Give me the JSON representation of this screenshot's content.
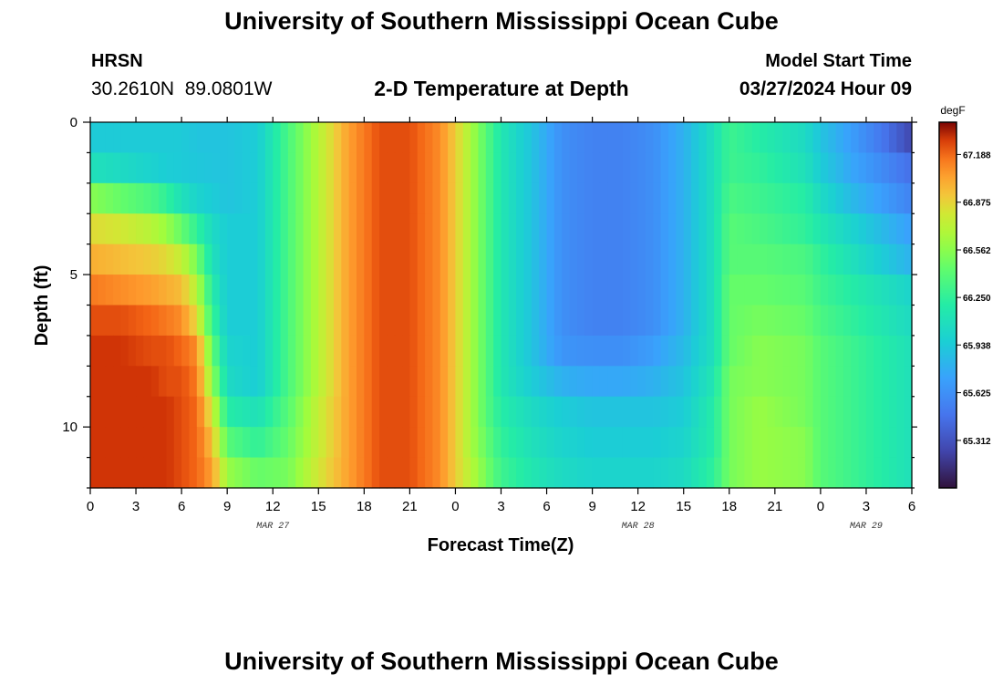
{
  "header": {
    "title": "University of Southern Mississippi Ocean Cube",
    "station": "HRSN",
    "coords": "30.2610N  89.0801W",
    "subtitle": "2-D Temperature at Depth",
    "model_label": "Model Start Time",
    "model_time": "03/27/2024 Hour 09"
  },
  "footer": {
    "title": "University of Southern Mississippi Ocean Cube"
  },
  "chart_data": {
    "type": "heatmap",
    "title": "2-D Temperature at Depth",
    "xlabel": "Forecast Time(Z)",
    "ylabel": "Depth (ft)",
    "x_ticks": [
      "0",
      "3",
      "6",
      "9",
      "12",
      "15",
      "18",
      "21",
      "0",
      "3",
      "6",
      "9",
      "12",
      "15",
      "18",
      "21",
      "0",
      "3",
      "6"
    ],
    "date_labels": [
      {
        "label": "MAR 27",
        "hour_offset": 12
      },
      {
        "label": "MAR 28",
        "hour_offset": 36
      },
      {
        "label": "MAR 29",
        "hour_offset": 51
      }
    ],
    "x_range_hours": [
      0,
      54
    ],
    "y_ticks": [
      0,
      5,
      10
    ],
    "y_range_ft": [
      0,
      12
    ],
    "colorbar": {
      "unit": "degF",
      "min": 65.0,
      "max": 67.4,
      "ticks": [
        "67.188",
        "66.875",
        "66.562",
        "66.250",
        "65.938",
        "65.625",
        "65.312"
      ]
    },
    "depth_levels_ft": [
      0.5,
      1.5,
      2.5,
      3.5,
      4.5,
      5.5,
      6.5,
      7.5,
      8.5,
      9.5,
      10.5,
      11.5
    ],
    "time_keys_hours": [
      0,
      2,
      4,
      5,
      6,
      7,
      8,
      9,
      11,
      13,
      15,
      17,
      19,
      21,
      23,
      24,
      25,
      26,
      27,
      29,
      31,
      33,
      35,
      37,
      39,
      41,
      42,
      44,
      47,
      48,
      50,
      52,
      54
    ],
    "temperature_degF": [
      [
        65.94,
        65.94,
        65.94,
        65.94,
        65.94,
        65.9,
        65.9,
        65.9,
        65.95,
        66.35,
        66.7,
        67.05,
        67.25,
        67.25,
        67.1,
        66.9,
        66.65,
        66.4,
        66.15,
        65.9,
        65.62,
        65.55,
        65.55,
        65.62,
        65.8,
        66.1,
        66.3,
        66.2,
        66.05,
        65.9,
        65.7,
        65.5,
        65.25
      ],
      [
        66.1,
        66.05,
        65.99,
        65.95,
        65.94,
        65.92,
        65.91,
        65.9,
        65.95,
        66.35,
        66.7,
        67.05,
        67.25,
        67.25,
        67.1,
        66.9,
        66.65,
        66.4,
        66.15,
        65.9,
        65.62,
        65.55,
        65.55,
        65.62,
        65.8,
        66.1,
        66.3,
        66.25,
        66.1,
        65.95,
        65.75,
        65.6,
        65.45
      ],
      [
        66.55,
        66.45,
        66.35,
        66.25,
        66.1,
        66.0,
        65.95,
        65.9,
        65.95,
        66.35,
        66.7,
        67.05,
        67.25,
        67.25,
        67.1,
        66.9,
        66.65,
        66.4,
        66.15,
        65.9,
        65.62,
        65.55,
        65.55,
        65.62,
        65.8,
        66.1,
        66.35,
        66.3,
        66.2,
        66.05,
        65.85,
        65.7,
        65.55
      ],
      [
        66.85,
        66.8,
        66.7,
        66.6,
        66.45,
        66.25,
        66.05,
        65.95,
        65.95,
        66.35,
        66.7,
        67.05,
        67.25,
        67.25,
        67.1,
        66.9,
        66.65,
        66.4,
        66.15,
        65.9,
        65.62,
        65.55,
        65.55,
        65.62,
        65.8,
        66.1,
        66.4,
        66.35,
        66.25,
        66.15,
        66.0,
        65.85,
        65.7
      ],
      [
        67.0,
        66.95,
        66.9,
        66.85,
        66.75,
        66.5,
        66.1,
        65.95,
        65.95,
        66.35,
        66.7,
        67.05,
        67.25,
        67.25,
        67.1,
        66.9,
        66.65,
        66.4,
        66.15,
        65.9,
        65.62,
        65.55,
        65.55,
        65.62,
        65.8,
        66.1,
        66.4,
        66.4,
        66.35,
        66.25,
        66.1,
        65.95,
        65.8
      ],
      [
        67.15,
        67.1,
        67.05,
        67.0,
        66.95,
        66.7,
        66.2,
        65.95,
        65.95,
        66.35,
        66.7,
        67.05,
        67.25,
        67.25,
        67.1,
        66.9,
        66.65,
        66.4,
        66.15,
        65.9,
        65.62,
        65.55,
        65.55,
        65.62,
        65.8,
        66.1,
        66.45,
        66.45,
        66.4,
        66.3,
        66.2,
        66.1,
        66.0
      ],
      [
        67.25,
        67.25,
        67.2,
        67.15,
        67.1,
        66.85,
        66.3,
        65.95,
        65.95,
        66.35,
        66.7,
        67.05,
        67.25,
        67.25,
        67.1,
        66.9,
        66.65,
        66.4,
        66.15,
        65.9,
        65.62,
        65.55,
        65.55,
        65.62,
        65.8,
        66.1,
        66.45,
        66.5,
        66.45,
        66.35,
        66.25,
        66.15,
        66.05
      ],
      [
        67.3,
        67.3,
        67.25,
        67.25,
        67.2,
        67.1,
        66.45,
        66.0,
        65.95,
        66.35,
        66.7,
        67.05,
        67.25,
        67.25,
        67.1,
        66.9,
        66.65,
        66.4,
        66.15,
        65.9,
        65.65,
        65.62,
        65.62,
        65.7,
        65.85,
        66.1,
        66.45,
        66.55,
        66.5,
        66.4,
        66.3,
        66.2,
        66.1
      ],
      [
        67.3,
        67.3,
        67.3,
        67.25,
        67.25,
        67.15,
        66.6,
        66.05,
        65.95,
        66.35,
        66.7,
        67.05,
        67.25,
        67.25,
        67.1,
        66.9,
        66.65,
        66.4,
        66.15,
        65.95,
        65.8,
        65.75,
        65.75,
        65.8,
        65.9,
        66.15,
        66.5,
        66.55,
        66.5,
        66.4,
        66.3,
        66.2,
        66.1
      ],
      [
        67.3,
        67.3,
        67.3,
        67.3,
        67.25,
        67.2,
        66.8,
        66.2,
        66.1,
        66.4,
        66.75,
        67.05,
        67.25,
        67.25,
        67.1,
        66.9,
        66.65,
        66.4,
        66.2,
        66.05,
        65.95,
        65.9,
        65.9,
        65.9,
        65.95,
        66.2,
        66.5,
        66.6,
        66.5,
        66.4,
        66.3,
        66.2,
        66.1
      ],
      [
        67.3,
        67.3,
        67.3,
        67.3,
        67.25,
        67.2,
        66.95,
        66.4,
        66.25,
        66.45,
        66.75,
        67.05,
        67.25,
        67.25,
        67.1,
        66.9,
        66.65,
        66.45,
        66.25,
        66.1,
        66.0,
        65.95,
        65.95,
        65.95,
        66.0,
        66.2,
        66.5,
        66.6,
        66.55,
        66.4,
        66.3,
        66.2,
        66.1
      ],
      [
        67.3,
        67.3,
        67.3,
        67.3,
        67.25,
        67.2,
        67.05,
        66.6,
        66.45,
        66.5,
        66.8,
        67.05,
        67.25,
        67.25,
        67.1,
        66.9,
        66.7,
        66.5,
        66.3,
        66.15,
        66.05,
        66.0,
        66.0,
        66.0,
        66.05,
        66.25,
        66.5,
        66.6,
        66.55,
        66.4,
        66.3,
        66.2,
        66.1
      ]
    ]
  }
}
